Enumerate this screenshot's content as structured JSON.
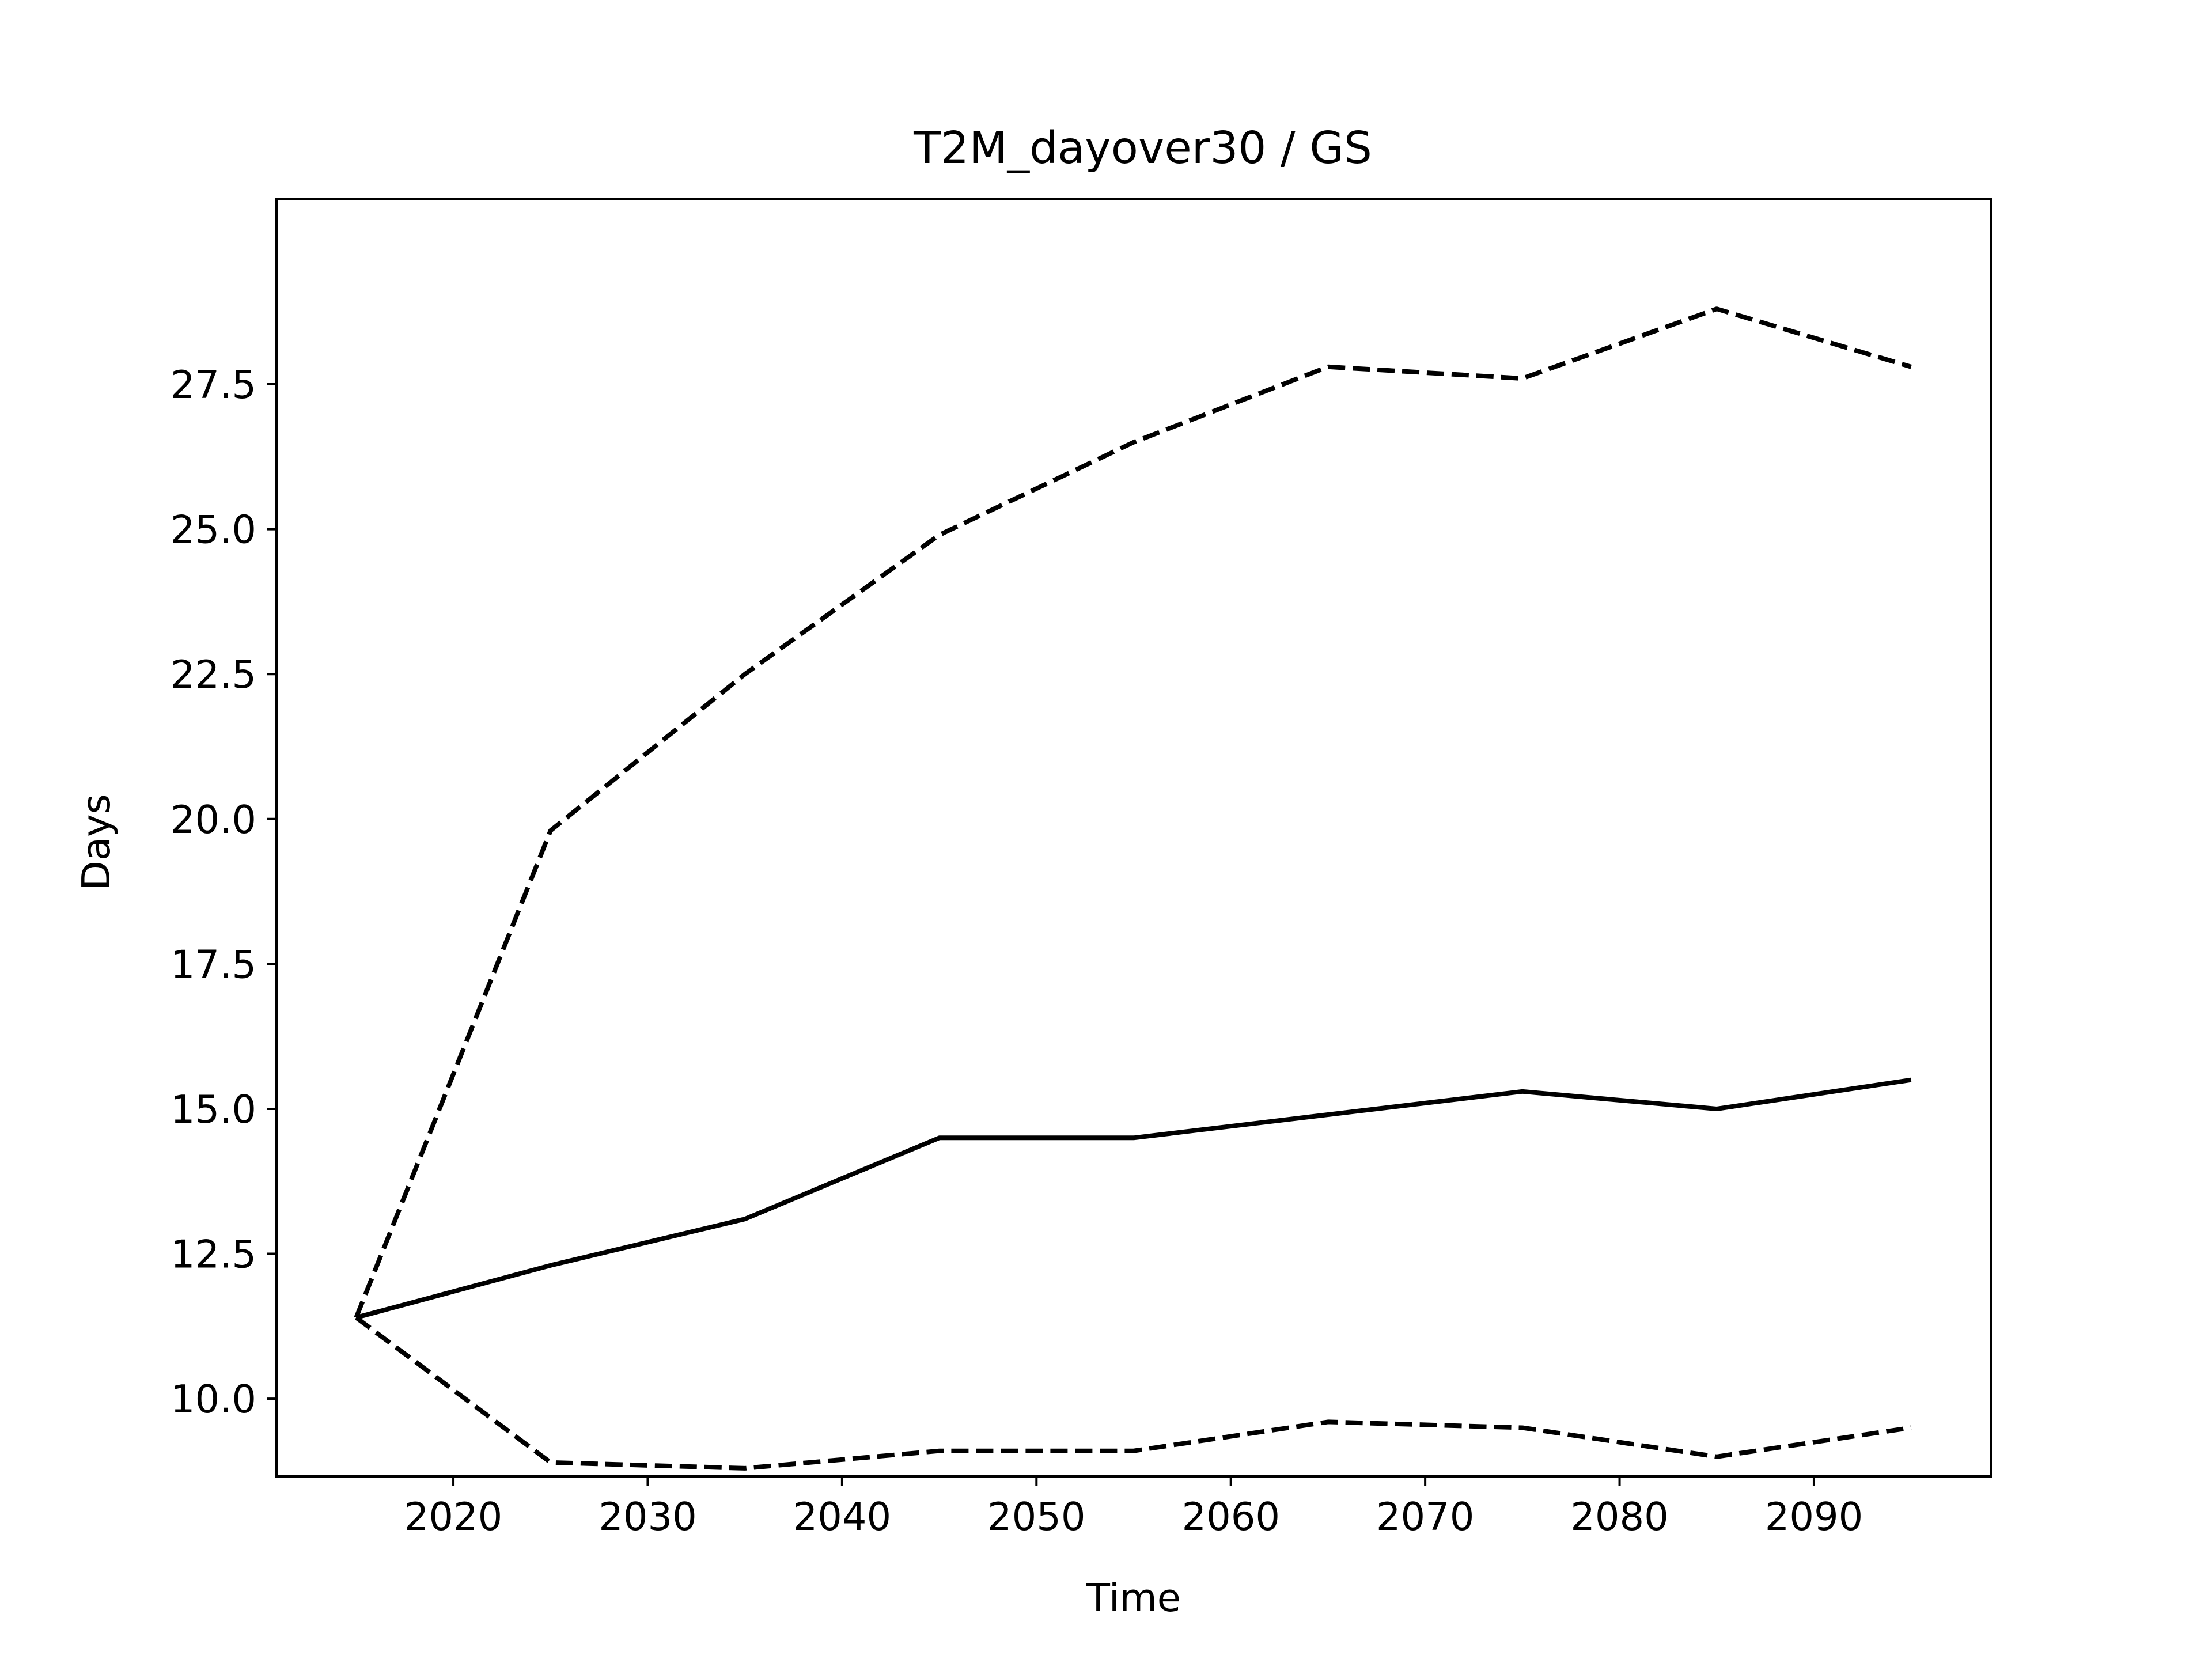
{
  "chart_data": {
    "type": "line",
    "title": "T2M_dayover30 / GS",
    "xlabel": "Time",
    "ylabel": "Days",
    "x": [
      2015,
      2025,
      2035,
      2045,
      2055,
      2065,
      2075,
      2085,
      2095
    ],
    "xticks": [
      2020,
      2030,
      2040,
      2050,
      2060,
      2070,
      2080,
      2090
    ],
    "xtick_labels": [
      "2020",
      "2030",
      "2040",
      "2050",
      "2060",
      "2070",
      "2080",
      "2090"
    ],
    "yticks": [
      10.0,
      12.5,
      15.0,
      17.5,
      20.0,
      22.5,
      25.0,
      27.5
    ],
    "ytick_labels": [
      "10.0",
      "12.5",
      "15.0",
      "17.5",
      "20.0",
      "22.5",
      "25.0",
      "27.5"
    ],
    "xlim": [
      2010.9,
      2099.1
    ],
    "ylim": [
      8.66,
      30.7
    ],
    "grid": false,
    "legend": "none",
    "series": [
      {
        "style": "dashed",
        "color": "#000000",
        "values": [
          11.4,
          19.8,
          22.5,
          24.9,
          26.5,
          27.8,
          27.6,
          28.8,
          27.8
        ]
      },
      {
        "style": "solid",
        "color": "#000000",
        "values": [
          11.4,
          12.3,
          13.1,
          14.5,
          14.5,
          14.9,
          15.3,
          15.0,
          15.5
        ]
      },
      {
        "style": "dashed",
        "color": "#000000",
        "values": [
          11.4,
          8.9,
          8.8,
          9.1,
          9.1,
          9.6,
          9.5,
          9.0,
          9.5
        ]
      }
    ]
  }
}
